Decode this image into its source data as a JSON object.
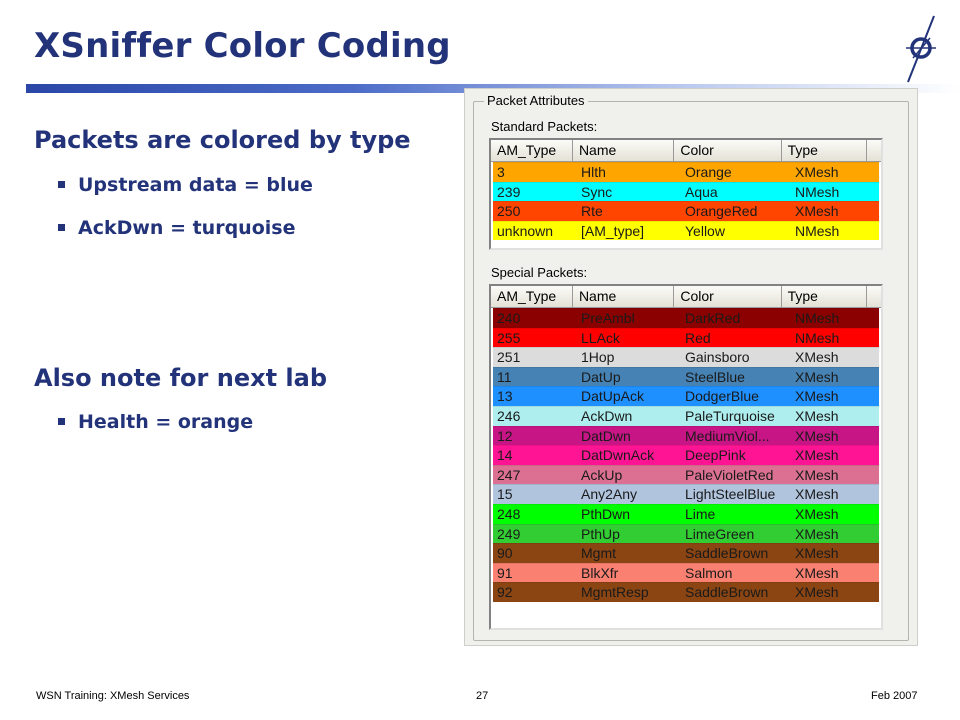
{
  "slide": {
    "title": "XSniffer Color Coding",
    "heading1": "Packets are colored by type",
    "bullets1": [
      "Upstream data = blue",
      "AckDwn = turquoise"
    ],
    "heading2": "Also note for next lab",
    "bullets2": [
      "Health = orange"
    ]
  },
  "dialog": {
    "group_label": "Packet Attributes",
    "standard_label": "Standard Packets:",
    "special_label": "Special Packets:",
    "columns": [
      "AM_Type",
      "Name",
      "Color",
      "Type"
    ],
    "standard_rows": [
      {
        "am": "3",
        "name": "Hlth",
        "color": "Orange",
        "type": "XMesh",
        "bg": "#ffa500"
      },
      {
        "am": "239",
        "name": "Sync",
        "color": "Aqua",
        "type": "NMesh",
        "bg": "#00ffff"
      },
      {
        "am": "250",
        "name": "Rte",
        "color": "OrangeRed",
        "type": "XMesh",
        "bg": "#ff4500"
      },
      {
        "am": "unknown",
        "name": "[AM_type]",
        "color": "Yellow",
        "type": "NMesh",
        "bg": "#ffff00"
      }
    ],
    "special_rows": [
      {
        "am": "240",
        "name": "PreAmbl",
        "color": "DarkRed",
        "type": "NMesh",
        "bg": "#8b0000"
      },
      {
        "am": "255",
        "name": "LLAck",
        "color": "Red",
        "type": "NMesh",
        "bg": "#ff0000"
      },
      {
        "am": "251",
        "name": "1Hop",
        "color": "Gainsboro",
        "type": "XMesh",
        "bg": "#dcdcdc"
      },
      {
        "am": "11",
        "name": "DatUp",
        "color": "SteelBlue",
        "type": "XMesh",
        "bg": "#4682b4"
      },
      {
        "am": "13",
        "name": "DatUpAck",
        "color": "DodgerBlue",
        "type": "XMesh",
        "bg": "#1e90ff"
      },
      {
        "am": "246",
        "name": "AckDwn",
        "color": "PaleTurquoise",
        "type": "XMesh",
        "bg": "#afeeee"
      },
      {
        "am": "12",
        "name": "DatDwn",
        "color": "MediumViol...",
        "type": "XMesh",
        "bg": "#c71585"
      },
      {
        "am": "14",
        "name": "DatDwnAck",
        "color": "DeepPink",
        "type": "XMesh",
        "bg": "#ff1493"
      },
      {
        "am": "247",
        "name": "AckUp",
        "color": "PaleVioletRed",
        "type": "XMesh",
        "bg": "#db7093"
      },
      {
        "am": "15",
        "name": "Any2Any",
        "color": "LightSteelBlue",
        "type": "XMesh",
        "bg": "#b0c4de"
      },
      {
        "am": "248",
        "name": "PthDwn",
        "color": "Lime",
        "type": "XMesh",
        "bg": "#00ff00"
      },
      {
        "am": "249",
        "name": "PthUp",
        "color": "LimeGreen",
        "type": "XMesh",
        "bg": "#32cd32"
      },
      {
        "am": "90",
        "name": "Mgmt",
        "color": "SaddleBrown",
        "type": "XMesh",
        "bg": "#8b4513"
      },
      {
        "am": "91",
        "name": "BlkXfr",
        "color": "Salmon",
        "type": "XMesh",
        "bg": "#fa8072"
      },
      {
        "am": "92",
        "name": "MgmtResp",
        "color": "SaddleBrown",
        "type": "XMesh",
        "bg": "#8b4513"
      }
    ]
  },
  "footer": {
    "left": "WSN Training: XMesh Services",
    "page": "27",
    "right": "Feb 2007"
  }
}
